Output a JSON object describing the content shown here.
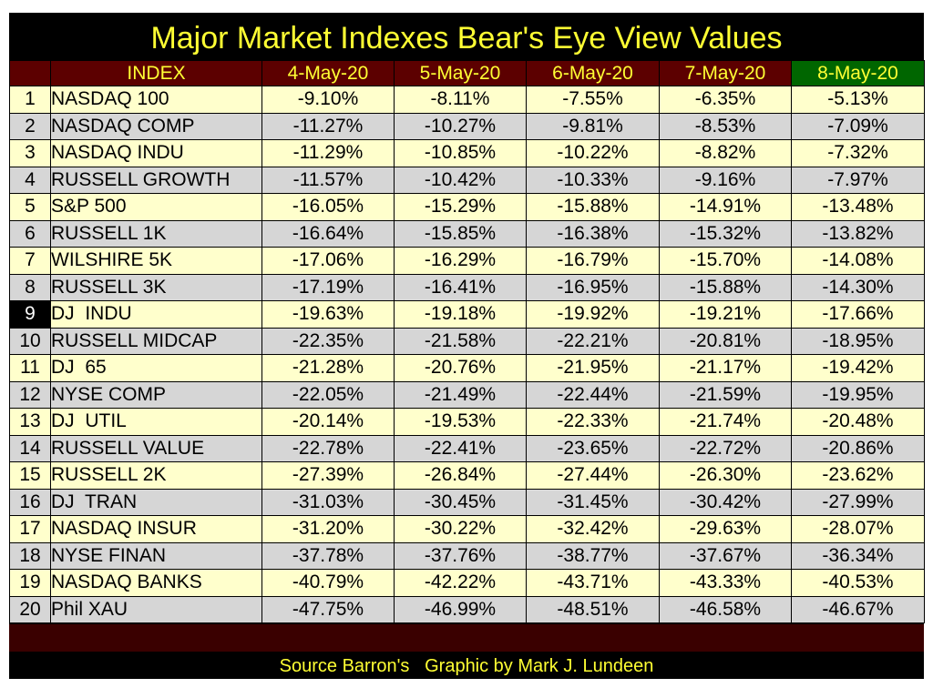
{
  "colors": {
    "background": "#000000",
    "title": "#ffff33",
    "header_bg": "#5c0000",
    "header_highlight_bg": "#006600",
    "row_odd": "#ffffcc",
    "row_even": "#d6d6d6"
  },
  "chart_data": {
    "type": "table",
    "title": "Major Market Indexes Bear's Eye View Values",
    "columns": [
      "",
      "INDEX",
      "4-May-20",
      "5-May-20",
      "6-May-20",
      "7-May-20",
      "8-May-20"
    ],
    "highlight_column": "8-May-20",
    "rows": [
      {
        "rank": "1",
        "name": "NASDAQ 100",
        "values": [
          "-9.10%",
          "-8.11%",
          "-7.55%",
          "-6.35%",
          "-5.13%"
        ]
      },
      {
        "rank": "2",
        "name": "NASDAQ COMP",
        "values": [
          "-11.27%",
          "-10.27%",
          "-9.81%",
          "-8.53%",
          "-7.09%"
        ]
      },
      {
        "rank": "3",
        "name": "NASDAQ INDU",
        "values": [
          "-11.29%",
          "-10.85%",
          "-10.22%",
          "-8.82%",
          "-7.32%"
        ]
      },
      {
        "rank": "4",
        "name": "RUSSELL GROWTH",
        "values": [
          "-11.57%",
          "-10.42%",
          "-10.33%",
          "-9.16%",
          "-7.97%"
        ]
      },
      {
        "rank": "5",
        "name": "S&P 500",
        "values": [
          "-16.05%",
          "-15.29%",
          "-15.88%",
          "-14.91%",
          "-13.48%"
        ]
      },
      {
        "rank": "6",
        "name": "RUSSELL 1K",
        "values": [
          "-16.64%",
          "-15.85%",
          "-16.38%",
          "-15.32%",
          "-13.82%"
        ]
      },
      {
        "rank": "7",
        "name": "WILSHIRE 5K",
        "values": [
          "-17.06%",
          "-16.29%",
          "-16.79%",
          "-15.70%",
          "-14.08%"
        ]
      },
      {
        "rank": "8",
        "name": "RUSSELL 3K",
        "values": [
          "-17.19%",
          "-16.41%",
          "-16.95%",
          "-15.88%",
          "-14.30%"
        ]
      },
      {
        "rank": "9",
        "name": "DJ  INDU",
        "values": [
          "-19.63%",
          "-19.18%",
          "-19.92%",
          "-19.21%",
          "-17.66%"
        ],
        "marked": true
      },
      {
        "rank": "10",
        "name": "RUSSELL MIDCAP",
        "values": [
          "-22.35%",
          "-21.58%",
          "-22.21%",
          "-20.81%",
          "-18.95%"
        ]
      },
      {
        "rank": "11",
        "name": "DJ  65",
        "values": [
          "-21.28%",
          "-20.76%",
          "-21.95%",
          "-21.17%",
          "-19.42%"
        ]
      },
      {
        "rank": "12",
        "name": "NYSE COMP",
        "values": [
          "-22.05%",
          "-21.49%",
          "-22.44%",
          "-21.59%",
          "-19.95%"
        ]
      },
      {
        "rank": "13",
        "name": "DJ  UTIL",
        "values": [
          "-20.14%",
          "-19.53%",
          "-22.33%",
          "-21.74%",
          "-20.48%"
        ]
      },
      {
        "rank": "14",
        "name": "RUSSELL VALUE",
        "values": [
          "-22.78%",
          "-22.41%",
          "-23.65%",
          "-22.72%",
          "-20.86%"
        ]
      },
      {
        "rank": "15",
        "name": "RUSSELL 2K",
        "values": [
          "-27.39%",
          "-26.84%",
          "-27.44%",
          "-26.30%",
          "-23.62%"
        ]
      },
      {
        "rank": "16",
        "name": "DJ  TRAN",
        "values": [
          "-31.03%",
          "-30.45%",
          "-31.45%",
          "-30.42%",
          "-27.99%"
        ]
      },
      {
        "rank": "17",
        "name": "NASDAQ INSUR",
        "values": [
          "-31.20%",
          "-30.22%",
          "-32.42%",
          "-29.63%",
          "-28.07%"
        ]
      },
      {
        "rank": "18",
        "name": "NYSE FINAN",
        "values": [
          "-37.78%",
          "-37.76%",
          "-38.77%",
          "-37.67%",
          "-36.34%"
        ]
      },
      {
        "rank": "19",
        "name": "NASDAQ BANKS",
        "values": [
          "-40.79%",
          "-42.22%",
          "-43.71%",
          "-43.33%",
          "-40.53%"
        ]
      },
      {
        "rank": "20",
        "name": "Phil XAU",
        "values": [
          "-47.75%",
          "-46.99%",
          "-48.51%",
          "-46.58%",
          "-46.67%"
        ]
      }
    ],
    "source": "Source Barron's   Graphic by Mark J. Lundeen"
  }
}
